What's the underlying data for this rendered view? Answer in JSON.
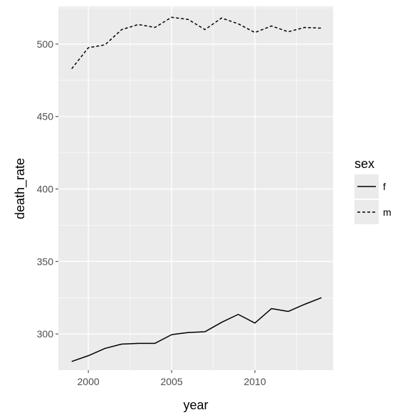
{
  "chart_data": {
    "type": "line",
    "xlabel": "year",
    "ylabel": "death_rate",
    "xlim": [
      1998.2,
      2014.7
    ],
    "ylim": [
      275,
      526
    ],
    "x_ticks": [
      2000,
      2005,
      2010
    ],
    "x_tick_labels": [
      "2000",
      "2005",
      "2010"
    ],
    "y_ticks": [
      300,
      350,
      400,
      450,
      500
    ],
    "y_tick_labels": [
      "300",
      "350",
      "400",
      "450",
      "500"
    ],
    "grid": true,
    "legend": {
      "title": "sex",
      "placement": "right"
    },
    "x": [
      1999,
      2000,
      2001,
      2002,
      2003,
      2004,
      2005,
      2006,
      2007,
      2008,
      2009,
      2010,
      2011,
      2012,
      2013,
      2014
    ],
    "series": [
      {
        "name": "f",
        "linetype": "solid",
        "color": "#000000",
        "values": [
          281,
          285,
          290,
          293,
          293.5,
          293.5,
          299.5,
          301,
          301.5,
          308,
          313.5,
          307.5,
          317.5,
          315.5,
          320.5,
          325
        ]
      },
      {
        "name": "m",
        "linetype": "dashed",
        "color": "#000000",
        "values": [
          483,
          497.5,
          499.5,
          510,
          513.5,
          511.5,
          518.5,
          517,
          510,
          518,
          514,
          508,
          512.5,
          508.5,
          511.5,
          511
        ]
      }
    ],
    "panel_background": "#ebebeb",
    "grid_color": "#ffffff"
  }
}
